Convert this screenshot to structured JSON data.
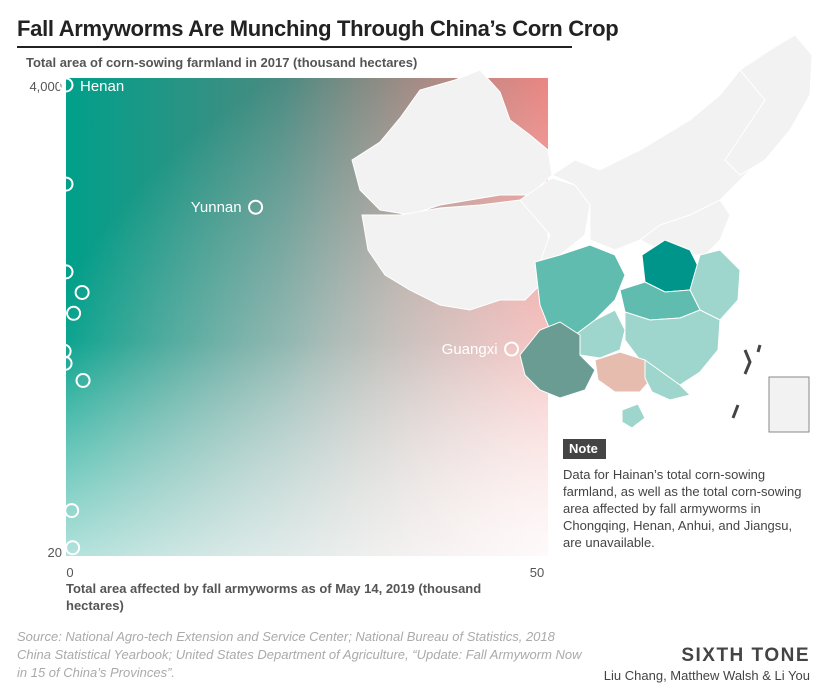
{
  "title": "Fall Armyworms Are Munching Through China’s Corn Crop",
  "note": {
    "tag": "Note",
    "text": "Data for Hainan’s total corn-sowing farmland, as well as the total corn-sowing area affected by fall armyworms in Chongqing, Henan, Anhui, and Jiangsu, are unavailable."
  },
  "source": "Source:  National Agro-tech Extension and Service Center; National Bureau of Statistics, 2018 China Statistical Yearbook; United States Department of Agriculture, “Update: Fall Armyworm Now in 15 of China’s Provinces”.",
  "brand": "SIXTH TONE",
  "authors": "Liu Chang, Matthew Walsh & Li You",
  "colors": {
    "teal": "#00a08a",
    "salmon": "#e8736f",
    "henan_map": "#00958a",
    "yunnan_map": "#6a9c94",
    "guangxi_map": "#e6bcae",
    "map_light_teal": "#9ed5cc",
    "map_mid_teal": "#5fbcae",
    "map_gray": "#f2f2f2"
  },
  "chart_data": {
    "type": "scatter",
    "ylabel": "Total area of corn-sowing farmland in 2017 (thousand hectares)",
    "xlabel": "Total area affected by fall armyworms as of May 14, 2019 (thousand hectares)",
    "xlim": [
      0,
      50
    ],
    "ylim": [
      20,
      4000
    ],
    "yscale": "log",
    "x_ticks": [
      "0",
      "50"
    ],
    "y_ticks": [
      "20",
      "4,000"
    ],
    "grid": false,
    "points": [
      {
        "label": "Henan",
        "x": 0,
        "y": 4000
      },
      {
        "label": "Yunnan",
        "x": 20,
        "y": 1000
      },
      {
        "label": "Guangxi",
        "x": 47,
        "y": 200
      },
      {
        "label": "",
        "x": 0,
        "y": 1300
      },
      {
        "label": "",
        "x": 0,
        "y": 480
      },
      {
        "label": "",
        "x": 1.7,
        "y": 380
      },
      {
        "label": "",
        "x": 0.8,
        "y": 300
      },
      {
        "label": "",
        "x": -0.2,
        "y": 195
      },
      {
        "label": "",
        "x": -0.1,
        "y": 170
      },
      {
        "label": "",
        "x": 1.8,
        "y": 140
      },
      {
        "label": "",
        "x": 0.6,
        "y": 32
      },
      {
        "label": "",
        "x": 0.7,
        "y": 21
      }
    ]
  }
}
